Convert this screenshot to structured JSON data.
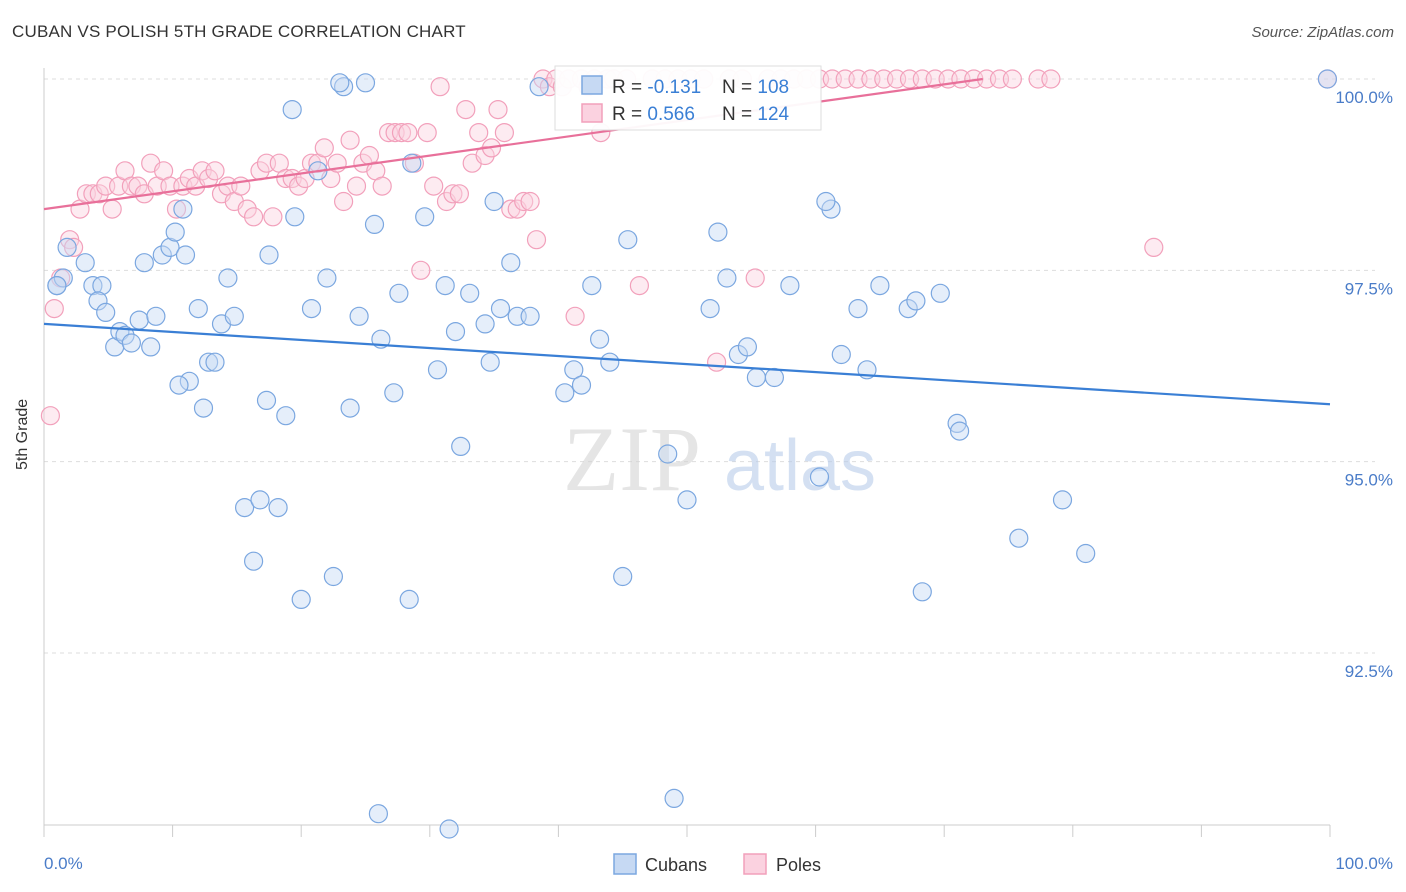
{
  "header": {
    "title": "CUBAN VS POLISH 5TH GRADE CORRELATION CHART",
    "source": "Source: ZipAtlas.com"
  },
  "watermark": {
    "zip": "ZIP",
    "atlas": "atlas"
  },
  "legend_stats": [
    {
      "r_label": "R = ",
      "r_value": "-0.131",
      "n_label": "N = ",
      "n_value": "108",
      "color": "#7ba7e0"
    },
    {
      "r_label": "R = ",
      "r_value": "0.566",
      "n_label": "N = ",
      "n_value": "124",
      "color": "#f2a0bb"
    }
  ],
  "bottom_legend": [
    {
      "label": "Cubans",
      "color": "#7ba7e0"
    },
    {
      "label": "Poles",
      "color": "#f2a0bb"
    }
  ],
  "colors": {
    "blue": "#3a7fd5",
    "pink": "#e8709a",
    "tick_text": "#4a7cc8",
    "grid": "#dddddd"
  },
  "chart_data": {
    "type": "scatter",
    "title": "CUBAN VS POLISH 5TH GRADE CORRELATION CHART",
    "xlabel": "",
    "ylabel": "5th Grade",
    "xlim": [
      0,
      100
    ],
    "ylim": [
      90.0,
      100.45
    ],
    "x_tick_labels": [
      "0.0%",
      "100.0%"
    ],
    "y_ticks": [
      92.5,
      95.0,
      97.5,
      100.0
    ],
    "y_tick_labels": [
      "92.5%",
      "95.0%",
      "97.5%",
      "100.0%"
    ],
    "grid": true,
    "series": [
      {
        "name": "Cubans",
        "color": "#7ba7e0",
        "trend": {
          "x": [
            0,
            100
          ],
          "y": [
            96.8,
            95.75
          ]
        },
        "points": [
          [
            1,
            97.3
          ],
          [
            1.5,
            97.4
          ],
          [
            1.8,
            97.8
          ],
          [
            3.2,
            97.6
          ],
          [
            3.8,
            97.3
          ],
          [
            4.5,
            97.3
          ],
          [
            4.2,
            97.1
          ],
          [
            4.8,
            96.95
          ],
          [
            5.5,
            96.5
          ],
          [
            5.9,
            96.7
          ],
          [
            6.3,
            96.65
          ],
          [
            6.8,
            96.55
          ],
          [
            7.4,
            96.85
          ],
          [
            7.8,
            97.6
          ],
          [
            8.3,
            96.5
          ],
          [
            8.7,
            96.9
          ],
          [
            9.2,
            97.7
          ],
          [
            9.8,
            97.8
          ],
          [
            10.2,
            98.0
          ],
          [
            10.8,
            98.3
          ],
          [
            11.3,
            96.05
          ],
          [
            12.0,
            97.0
          ],
          [
            12.4,
            95.7
          ],
          [
            12.8,
            96.3
          ],
          [
            13.3,
            96.3
          ],
          [
            13.8,
            96.8
          ],
          [
            14.3,
            97.4
          ],
          [
            14.8,
            96.9
          ],
          [
            15.6,
            94.4
          ],
          [
            16.3,
            93.7
          ],
          [
            16.8,
            94.5
          ],
          [
            17.5,
            97.7
          ],
          [
            18.2,
            94.4
          ],
          [
            18.8,
            95.6
          ],
          [
            19.5,
            98.2
          ],
          [
            19.3,
            99.6
          ],
          [
            20.0,
            93.2
          ],
          [
            20.8,
            97.0
          ],
          [
            21.3,
            98.8
          ],
          [
            22.0,
            97.4
          ],
          [
            22.5,
            93.5
          ],
          [
            23.3,
            99.9
          ],
          [
            23.8,
            95.7
          ],
          [
            24.5,
            96.9
          ],
          [
            25.7,
            98.1
          ],
          [
            26.2,
            96.6
          ],
          [
            27.2,
            95.9
          ],
          [
            27.6,
            97.2
          ],
          [
            28.4,
            93.2
          ],
          [
            28.6,
            98.9
          ],
          [
            29.6,
            98.2
          ],
          [
            30.6,
            96.2
          ],
          [
            31.2,
            97.3
          ],
          [
            32.0,
            96.7
          ],
          [
            32.4,
            95.2
          ],
          [
            33.1,
            97.2
          ],
          [
            34.3,
            96.8
          ],
          [
            34.7,
            96.3
          ],
          [
            35.0,
            98.4
          ],
          [
            35.5,
            97.0
          ],
          [
            36.3,
            97.6
          ],
          [
            36.8,
            96.9
          ],
          [
            37.8,
            96.9
          ],
          [
            38.5,
            99.9
          ],
          [
            40.5,
            95.9
          ],
          [
            41.2,
            96.2
          ],
          [
            41.8,
            96.0
          ],
          [
            42.6,
            97.3
          ],
          [
            43.2,
            96.6
          ],
          [
            44.0,
            96.3
          ],
          [
            45.0,
            93.5
          ],
          [
            45.4,
            97.9
          ],
          [
            48.5,
            95.1
          ],
          [
            49.0,
            90.6
          ],
          [
            50.0,
            94.5
          ],
          [
            51.8,
            97.0
          ],
          [
            52.4,
            98.0
          ],
          [
            53.1,
            97.4
          ],
          [
            54.0,
            96.4
          ],
          [
            54.7,
            96.5
          ],
          [
            55.4,
            96.1
          ],
          [
            56.8,
            96.1
          ],
          [
            58.0,
            97.3
          ],
          [
            60.3,
            94.8
          ],
          [
            61.2,
            98.3
          ],
          [
            62.0,
            96.4
          ],
          [
            63.3,
            97.0
          ],
          [
            64.0,
            96.2
          ],
          [
            65.0,
            97.3
          ],
          [
            67.2,
            97.0
          ],
          [
            67.8,
            97.1
          ],
          [
            68.3,
            93.3
          ],
          [
            69.7,
            97.2
          ],
          [
            71.0,
            95.5
          ],
          [
            71.2,
            95.4
          ],
          [
            75.8,
            94.0
          ],
          [
            79.2,
            94.5
          ],
          [
            81.0,
            93.8
          ],
          [
            99.8,
            100.0
          ],
          [
            26.0,
            90.4
          ],
          [
            31.5,
            90.2
          ],
          [
            60.8,
            98.4
          ],
          [
            1.0,
            97.3
          ],
          [
            23.0,
            99.95
          ],
          [
            25.0,
            99.95
          ],
          [
            11.0,
            97.7
          ],
          [
            17.3,
            95.8
          ],
          [
            10.5,
            96.0
          ]
        ]
      },
      {
        "name": "Poles",
        "color": "#f2a0bb",
        "trend": {
          "x": [
            0,
            73
          ],
          "y": [
            98.3,
            100.0
          ]
        },
        "points": [
          [
            0.5,
            95.6
          ],
          [
            0.8,
            97.0
          ],
          [
            1.3,
            97.4
          ],
          [
            2.0,
            97.9
          ],
          [
            2.3,
            97.8
          ],
          [
            2.8,
            98.3
          ],
          [
            3.3,
            98.5
          ],
          [
            3.8,
            98.5
          ],
          [
            4.3,
            98.5
          ],
          [
            4.8,
            98.6
          ],
          [
            5.3,
            98.3
          ],
          [
            5.8,
            98.6
          ],
          [
            6.3,
            98.8
          ],
          [
            6.8,
            98.6
          ],
          [
            7.3,
            98.6
          ],
          [
            7.8,
            98.5
          ],
          [
            8.3,
            98.9
          ],
          [
            8.8,
            98.6
          ],
          [
            9.3,
            98.8
          ],
          [
            9.8,
            98.6
          ],
          [
            10.3,
            98.3
          ],
          [
            10.8,
            98.6
          ],
          [
            11.3,
            98.7
          ],
          [
            11.8,
            98.6
          ],
          [
            12.3,
            98.8
          ],
          [
            12.8,
            98.7
          ],
          [
            13.3,
            98.8
          ],
          [
            13.8,
            98.5
          ],
          [
            14.3,
            98.6
          ],
          [
            14.8,
            98.4
          ],
          [
            15.3,
            98.6
          ],
          [
            15.8,
            98.3
          ],
          [
            16.3,
            98.2
          ],
          [
            16.8,
            98.8
          ],
          [
            17.3,
            98.9
          ],
          [
            17.8,
            98.2
          ],
          [
            18.3,
            98.9
          ],
          [
            18.8,
            98.7
          ],
          [
            19.3,
            98.7
          ],
          [
            19.8,
            98.6
          ],
          [
            20.3,
            98.7
          ],
          [
            20.8,
            98.9
          ],
          [
            21.3,
            98.9
          ],
          [
            21.8,
            99.1
          ],
          [
            22.3,
            98.7
          ],
          [
            22.8,
            98.9
          ],
          [
            23.3,
            98.4
          ],
          [
            23.8,
            99.2
          ],
          [
            24.3,
            98.6
          ],
          [
            24.8,
            98.9
          ],
          [
            25.3,
            99.0
          ],
          [
            25.8,
            98.8
          ],
          [
            26.3,
            98.6
          ],
          [
            26.8,
            99.3
          ],
          [
            27.3,
            99.3
          ],
          [
            27.8,
            99.3
          ],
          [
            28.3,
            99.3
          ],
          [
            28.8,
            98.9
          ],
          [
            29.3,
            97.5
          ],
          [
            29.8,
            99.3
          ],
          [
            30.3,
            98.6
          ],
          [
            30.8,
            99.9
          ],
          [
            31.3,
            98.4
          ],
          [
            31.8,
            98.5
          ],
          [
            32.3,
            98.5
          ],
          [
            32.8,
            99.6
          ],
          [
            33.3,
            98.9
          ],
          [
            33.8,
            99.3
          ],
          [
            34.3,
            99.0
          ],
          [
            34.8,
            99.1
          ],
          [
            35.3,
            99.6
          ],
          [
            35.8,
            99.3
          ],
          [
            36.3,
            98.3
          ],
          [
            36.8,
            98.3
          ],
          [
            37.3,
            98.4
          ],
          [
            37.8,
            98.4
          ],
          [
            38.3,
            97.9
          ],
          [
            38.8,
            100.0
          ],
          [
            39.3,
            99.9
          ],
          [
            39.8,
            100.0
          ],
          [
            40.3,
            99.9
          ],
          [
            40.8,
            100.0
          ],
          [
            41.3,
            96.9
          ],
          [
            41.8,
            100.0
          ],
          [
            42.3,
            99.9
          ],
          [
            42.8,
            100.0
          ],
          [
            43.3,
            99.3
          ],
          [
            43.8,
            100.0
          ],
          [
            44.3,
            100.0
          ],
          [
            45.3,
            100.0
          ],
          [
            46.3,
            97.3
          ],
          [
            47.3,
            100.0
          ],
          [
            48.3,
            100.0
          ],
          [
            49.3,
            100.0
          ],
          [
            50.3,
            100.0
          ],
          [
            51.3,
            100.0
          ],
          [
            52.3,
            96.3
          ],
          [
            53.3,
            100.0
          ],
          [
            54.3,
            100.0
          ],
          [
            55.3,
            97.4
          ],
          [
            56.3,
            100.0
          ],
          [
            57.3,
            100.0
          ],
          [
            58.3,
            100.0
          ],
          [
            59.3,
            100.0
          ],
          [
            60.3,
            100.0
          ],
          [
            61.3,
            100.0
          ],
          [
            62.3,
            100.0
          ],
          [
            63.3,
            100.0
          ],
          [
            64.3,
            100.0
          ],
          [
            65.3,
            100.0
          ],
          [
            66.3,
            100.0
          ],
          [
            67.3,
            100.0
          ],
          [
            68.3,
            100.0
          ],
          [
            69.3,
            100.0
          ],
          [
            70.3,
            100.0
          ],
          [
            71.3,
            100.0
          ],
          [
            72.3,
            100.0
          ],
          [
            73.3,
            100.0
          ],
          [
            74.3,
            100.0
          ],
          [
            75.3,
            100.0
          ],
          [
            77.3,
            100.0
          ],
          [
            78.3,
            100.0
          ],
          [
            86.3,
            97.8
          ],
          [
            99.8,
            100.0
          ]
        ]
      }
    ]
  }
}
